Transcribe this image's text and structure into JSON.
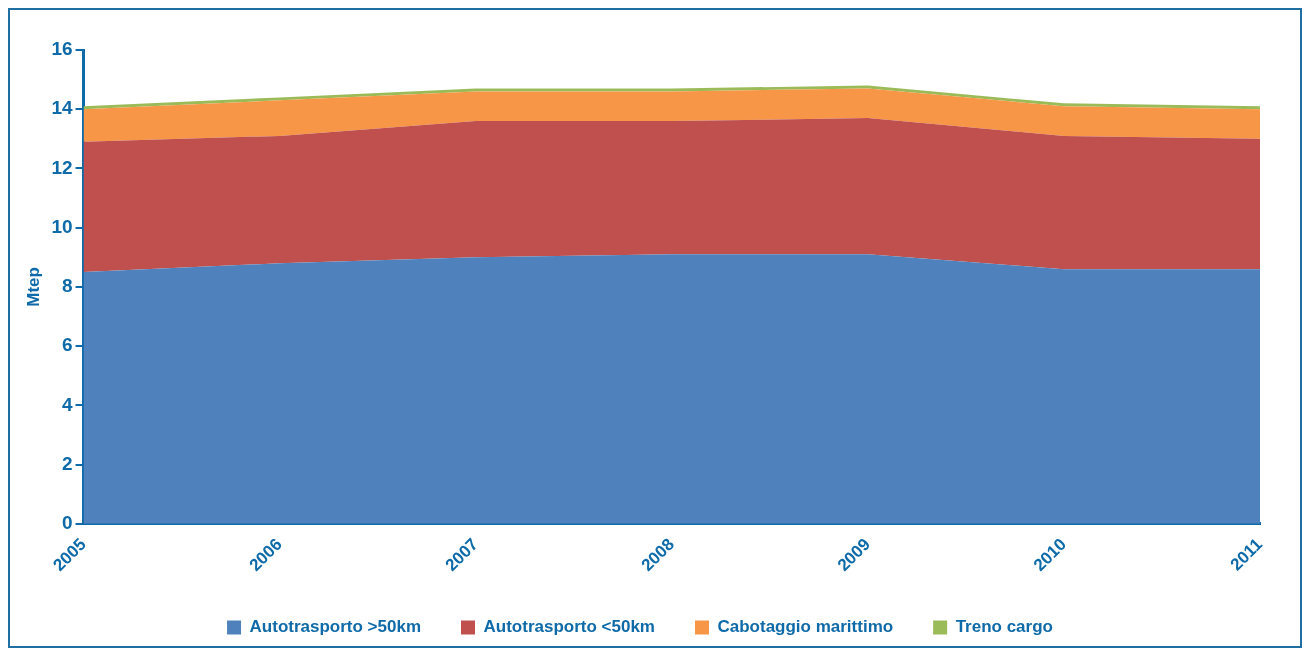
{
  "chart_data": {
    "type": "area",
    "stacked": true,
    "ylabel": "Mtep",
    "categories": [
      "2005",
      "2006",
      "2007",
      "2008",
      "2009",
      "2010",
      "2011"
    ],
    "series": [
      {
        "name": "Autotrasporto >50km",
        "color": "#4f81bd",
        "values": [
          8.5,
          8.8,
          9.0,
          9.1,
          9.1,
          8.6,
          8.6
        ]
      },
      {
        "name": "Autotrasporto <50km",
        "color": "#c0504d",
        "values": [
          4.4,
          4.3,
          4.6,
          4.5,
          4.6,
          4.5,
          4.4
        ]
      },
      {
        "name": "Cabotaggio marittimo",
        "color": "#f79646",
        "values": [
          1.1,
          1.2,
          1.0,
          1.0,
          1.0,
          1.0,
          1.0
        ]
      },
      {
        "name": "Treno cargo",
        "color": "#9bbb59",
        "values": [
          0.1,
          0.1,
          0.1,
          0.1,
          0.1,
          0.1,
          0.1
        ]
      }
    ],
    "ylim": [
      0,
      16
    ],
    "yticks": [
      0,
      2,
      4,
      6,
      8,
      10,
      12,
      14,
      16
    ],
    "grid": false,
    "legend": "bottom",
    "marker": "none"
  }
}
